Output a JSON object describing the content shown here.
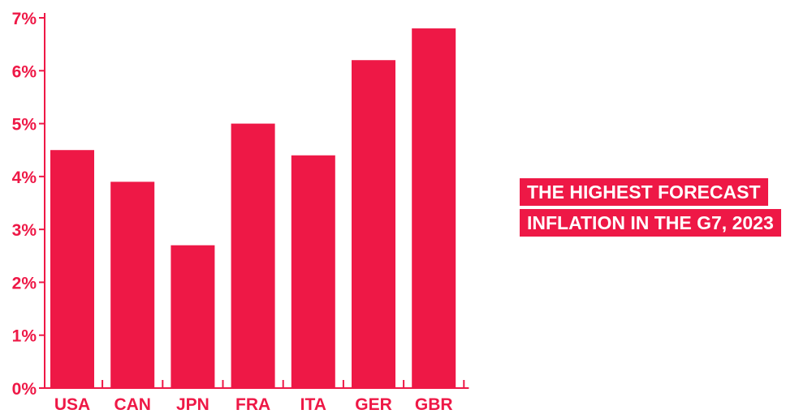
{
  "chart_data": {
    "type": "bar",
    "title_lines": [
      "THE HIGHEST FORECAST",
      "INFLATION IN THE G7, 2023"
    ],
    "categories": [
      "USA",
      "CAN",
      "JPN",
      "FRA",
      "ITA",
      "GER",
      "GBR"
    ],
    "values": [
      4.5,
      3.9,
      2.7,
      5.0,
      4.4,
      6.2,
      6.8
    ],
    "y_ticks": [
      "0%",
      "1%",
      "2%",
      "3%",
      "4%",
      "5%",
      "6%",
      "7%"
    ],
    "ylim": [
      0,
      7
    ],
    "grid": false,
    "color": "#EE1846"
  }
}
